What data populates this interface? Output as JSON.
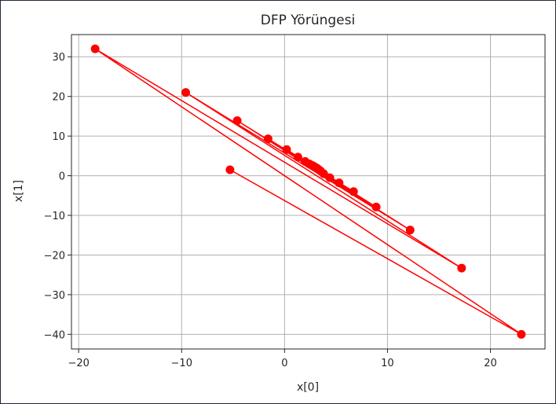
{
  "chart_data": {
    "type": "line",
    "title": "DFP Yörüngesi",
    "xlabel": "x[0]",
    "ylabel": "x[1]",
    "xlim": [
      -20.7,
      25.3
    ],
    "ylim": [
      -43.7,
      35.6
    ],
    "xticks": [
      -20,
      -10,
      0,
      10,
      20
    ],
    "yticks": [
      -40,
      -30,
      -20,
      -10,
      0,
      10,
      20,
      30
    ],
    "grid": true,
    "marker": "o",
    "color": "#ff0000",
    "series": [
      {
        "x": [
          -5.3,
          23.0,
          -18.4,
          17.2,
          -9.6,
          12.2,
          -4.6,
          8.9,
          -1.6,
          6.7,
          0.2,
          5.3,
          1.3,
          4.4,
          2.0,
          3.8,
          2.4,
          3.5,
          2.7,
          3.3,
          2.9,
          3.15,
          3.0
        ],
        "y": [
          1.5,
          -40.0,
          32.0,
          -23.3,
          21.0,
          -13.7,
          13.9,
          -7.9,
          9.3,
          -4.0,
          6.6,
          -1.8,
          4.7,
          -0.5,
          3.6,
          0.5,
          3.0,
          1.2,
          2.6,
          1.6,
          2.3,
          1.9,
          2.1
        ]
      }
    ]
  }
}
